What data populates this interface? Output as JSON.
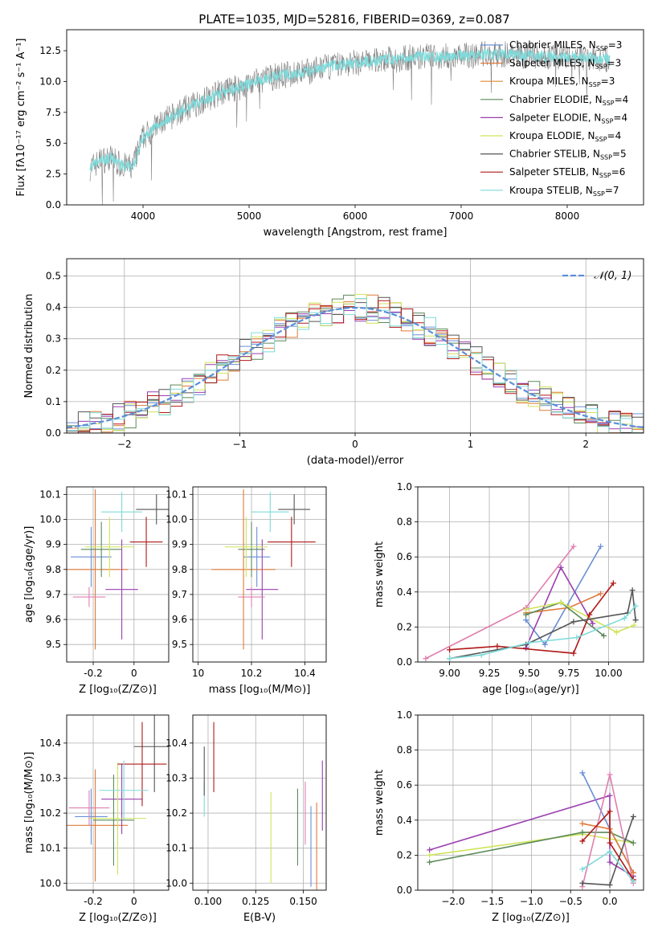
{
  "title": "PLATE=1035, MJD=52816, FIBERID=0369, z=0.087",
  "colors": {
    "Chabrier MILES": "#6a8fd6",
    "Salpeter MILES": "#e07a3a",
    "Kroupa MILES": "#e08a30",
    "Chabrier ELODIE": "#5a8a5a",
    "Salpeter ELODIE": "#9b3fb0",
    "Kroupa ELODIE": "#cfe45a",
    "Chabrier STELIB": "#555555",
    "Salpeter STELIB": "#b01818",
    "Kroupa STELIB": "#7fdada",
    "pink": "#e07fb0",
    "normal": "#5b8fd9",
    "grid": "#b0b0b0"
  },
  "chart_data": [
    {
      "id": "spectrum",
      "type": "line",
      "xlabel": "wavelength [Angstrom, rest frame]",
      "ylabel": "Flux [fλ10⁻¹⁷ erg cm⁻² s⁻¹ A⁻¹]",
      "xlim": [
        3280,
        8720
      ],
      "ylim": [
        0,
        14.2
      ],
      "xticks": [
        4000,
        5000,
        6000,
        7000,
        8000
      ],
      "yticks": [
        0.0,
        2.5,
        5.0,
        7.5,
        10.0,
        12.5
      ],
      "legend": [
        {
          "label": "Chabrier MILES, N",
          "sub": "SSP",
          "suffix": "=3",
          "color": "#6a8fd6"
        },
        {
          "label": "Salpeter MILES, N",
          "sub": "SSP",
          "suffix": "=3",
          "color": "#e07a3a"
        },
        {
          "label": "Kroupa MILES, N",
          "sub": "SSP",
          "suffix": "=3",
          "color": "#e08a30"
        },
        {
          "label": "Chabrier ELODIE, N",
          "sub": "SSP",
          "suffix": "=4",
          "color": "#5a8a5a"
        },
        {
          "label": "Salpeter ELODIE, N",
          "sub": "SSP",
          "suffix": "=4",
          "color": "#9b3fb0"
        },
        {
          "label": "Kroupa ELODIE, N",
          "sub": "SSP",
          "suffix": "=4",
          "color": "#cfe45a"
        },
        {
          "label": "Chabrier STELIB, N",
          "sub": "SSP",
          "suffix": "=5",
          "color": "#555555"
        },
        {
          "label": "Salpeter STELIB, N",
          "sub": "SSP",
          "suffix": "=6",
          "color": "#b01818"
        },
        {
          "label": "Kroupa STELIB, N",
          "sub": "SSP",
          "suffix": "=7",
          "color": "#7fdada"
        }
      ],
      "data_series": {
        "name": "data",
        "color": "#808080",
        "x": [
          3500,
          3600,
          3700,
          3800,
          3900,
          4000,
          4100,
          4200,
          4300,
          4400,
          4500,
          4600,
          4700,
          4800,
          4900,
          5000,
          5100,
          5200,
          5300,
          5400,
          5500,
          5600,
          5700,
          5800,
          5900,
          6000,
          6100,
          6200,
          6300,
          6400,
          6500,
          6600,
          6700,
          6800,
          6900,
          7000,
          7100,
          7200,
          7300,
          7400,
          7500,
          7600,
          7700,
          7800,
          7900,
          8000,
          8100,
          8200,
          8300,
          8400
        ],
        "y": [
          3.0,
          3.6,
          3.8,
          3.2,
          3.0,
          5.5,
          6.2,
          6.8,
          7.3,
          7.8,
          8.2,
          8.6,
          9.0,
          9.3,
          9.5,
          9.8,
          10.1,
          10.3,
          10.5,
          10.6,
          10.7,
          10.9,
          11.1,
          11.3,
          11.4,
          11.5,
          11.6,
          11.7,
          11.8,
          11.8,
          11.9,
          12.0,
          12.0,
          12.0,
          12.1,
          12.1,
          12.1,
          12.2,
          12.2,
          12.2,
          12.2,
          12.1,
          12.1,
          12.0,
          12.0,
          12.0,
          11.9,
          11.9,
          11.8,
          11.8
        ]
      },
      "model_series": {
        "name": "Kroupa STELIB model",
        "color": "#7fdada"
      }
    },
    {
      "id": "residuals",
      "type": "histogram",
      "xlabel": "(data-model)/error",
      "ylabel": "Normed distribution",
      "xlim": [
        -2.5,
        2.5
      ],
      "ylim": [
        0,
        0.555
      ],
      "xticks": [
        -2,
        -1,
        0,
        1,
        2
      ],
      "xtick_labels": [
        "−2",
        "−1",
        "0",
        "1",
        "2"
      ],
      "yticks": [
        0.0,
        0.1,
        0.2,
        0.3,
        0.4,
        0.5
      ],
      "legend": [
        {
          "label": "𝒩(0, 1)",
          "color": "#5b8fd9"
        }
      ],
      "bins_from": -2.5,
      "bin_width": 0.1
    },
    {
      "id": "age-vs-Z",
      "type": "errorbar",
      "xlabel": "Z [log₁₀(Z/Z⊙)]",
      "ylabel": "age  [log₁₀(age/yr)]",
      "xlim": [
        -0.33,
        0.17
      ],
      "ylim": [
        9.43,
        10.13
      ],
      "xticks": [
        -0.2,
        0.0
      ],
      "yticks": [
        9.5,
        9.6,
        9.7,
        9.8,
        9.9,
        10.0,
        10.1
      ],
      "points": [
        {
          "color": "#6a8fd6",
          "x": -0.21,
          "xerr": 0.1,
          "y": 9.85,
          "yerr": 0.12
        },
        {
          "color": "#e07a3a",
          "x": -0.19,
          "xerr": 0.16,
          "y": 9.8,
          "yerr": 0.32
        },
        {
          "color": "#5a8a5a",
          "x": -0.16,
          "xerr": 0.1,
          "y": 9.88,
          "yerr": 0.11
        },
        {
          "color": "#9b3fb0",
          "x": -0.06,
          "xerr": 0.08,
          "y": 9.72,
          "yerr": 0.2
        },
        {
          "color": "#cfe45a",
          "x": -0.12,
          "xerr": 0.12,
          "y": 9.89,
          "yerr": 0.12
        },
        {
          "color": "#555555",
          "x": 0.11,
          "xerr": 0.1,
          "y": 10.04,
          "yerr": 0.06
        },
        {
          "color": "#b01818",
          "x": 0.06,
          "xerr": 0.08,
          "y": 9.91,
          "yerr": 0.1
        },
        {
          "color": "#7fdada",
          "x": -0.06,
          "xerr": 0.1,
          "y": 10.03,
          "yerr": 0.08
        },
        {
          "color": "#e07fb0",
          "x": -0.22,
          "xerr": 0.08,
          "y": 9.69,
          "yerr": 0.04
        }
      ]
    },
    {
      "id": "age-vs-mass",
      "type": "errorbar",
      "xlabel": "mass [log₁₀(M/M⊙)]",
      "ylabel": "",
      "xlim": [
        9.98,
        10.48
      ],
      "ylim": [
        9.43,
        10.13
      ],
      "xticks": [
        10.0,
        10.2,
        10.4
      ],
      "yticks": [
        9.5,
        9.6,
        9.7,
        9.8,
        9.9,
        10.0,
        10.1
      ],
      "points": [
        {
          "color": "#6a8fd6",
          "x": 10.22,
          "xerr": 0.05,
          "y": 9.85,
          "yerr": 0.12
        },
        {
          "color": "#e07a3a",
          "x": 10.17,
          "xerr": 0.12,
          "y": 9.8,
          "yerr": 0.32
        },
        {
          "color": "#5a8a5a",
          "x": 10.2,
          "xerr": 0.05,
          "y": 9.88,
          "yerr": 0.11
        },
        {
          "color": "#9b3fb0",
          "x": 10.24,
          "xerr": 0.06,
          "y": 9.72,
          "yerr": 0.2
        },
        {
          "color": "#cfe45a",
          "x": 10.18,
          "xerr": 0.08,
          "y": 9.89,
          "yerr": 0.12
        },
        {
          "color": "#555555",
          "x": 10.36,
          "xerr": 0.06,
          "y": 10.04,
          "yerr": 0.06
        },
        {
          "color": "#b01818",
          "x": 10.35,
          "xerr": 0.09,
          "y": 9.91,
          "yerr": 0.1
        },
        {
          "color": "#7fdada",
          "x": 10.27,
          "xerr": 0.07,
          "y": 10.03,
          "yerr": 0.08
        },
        {
          "color": "#e07fb0",
          "x": 10.2,
          "xerr": 0.05,
          "y": 9.69,
          "yerr": 0.04
        }
      ]
    },
    {
      "id": "mass-weight-vs-age",
      "type": "line",
      "xlabel": "age  [log₁₀(age/yr)]",
      "ylabel": "mass weight",
      "xlim": [
        8.8,
        10.22
      ],
      "ylim": [
        0.0,
        1.0
      ],
      "xticks": [
        9.0,
        9.25,
        9.5,
        9.75,
        10.0
      ],
      "xtick_labels": [
        "9.00",
        "9.25",
        "9.50",
        "9.75",
        "10.00"
      ],
      "yticks": [
        0.0,
        0.2,
        0.4,
        0.6,
        0.8,
        1.0
      ],
      "series": [
        {
          "color": "#e07fb0",
          "x": [
            8.85,
            9.48,
            9.78
          ],
          "y": [
            0.02,
            0.31,
            0.66
          ]
        },
        {
          "color": "#6a8fd6",
          "x": [
            9.48,
            9.6,
            9.95
          ],
          "y": [
            0.24,
            0.1,
            0.66
          ]
        },
        {
          "color": "#9b3fb0",
          "x": [
            9.48,
            9.7,
            9.9
          ],
          "y": [
            0.08,
            0.54,
            0.22
          ]
        },
        {
          "color": "#e07a3a",
          "x": [
            9.48,
            9.75,
            9.95
          ],
          "y": [
            0.28,
            0.31,
            0.39
          ]
        },
        {
          "color": "#5a8a5a",
          "x": [
            9.48,
            9.7,
            9.97
          ],
          "y": [
            0.27,
            0.34,
            0.15
          ]
        },
        {
          "color": "#cfe45a",
          "x": [
            9.48,
            9.7,
            10.05,
            10.16
          ],
          "y": [
            0.3,
            0.34,
            0.17,
            0.21
          ]
        },
        {
          "color": "#b01818",
          "x": [
            9.0,
            9.3,
            9.78,
            9.88,
            10.03
          ],
          "y": [
            0.07,
            0.09,
            0.05,
            0.27,
            0.45
          ]
        },
        {
          "color": "#555555",
          "x": [
            9.0,
            9.48,
            9.78,
            10.12,
            10.15,
            10.17
          ],
          "y": [
            0.02,
            0.1,
            0.23,
            0.28,
            0.41,
            0.24
          ]
        },
        {
          "color": "#7fdada",
          "x": [
            9.0,
            9.2,
            9.5,
            9.8,
            10.1,
            10.17
          ],
          "y": [
            0.02,
            0.04,
            0.11,
            0.14,
            0.25,
            0.32
          ]
        }
      ]
    },
    {
      "id": "mass-vs-Z",
      "type": "errorbar",
      "xlabel": "Z [log₁₀(Z/Z⊙)]",
      "ylabel": "mass [log₁₀(M/M⊙)]",
      "xlim": [
        -0.33,
        0.17
      ],
      "ylim": [
        9.98,
        10.48
      ],
      "xticks": [
        -0.2,
        0.0
      ],
      "yticks": [
        10.0,
        10.1,
        10.2,
        10.3,
        10.4
      ],
      "points": [
        {
          "color": "#6a8fd6",
          "x": -0.21,
          "xerr": 0.08,
          "y": 10.19,
          "yerr": 0.08
        },
        {
          "color": "#e07a3a",
          "x": -0.19,
          "xerr": 0.16,
          "y": 10.165,
          "yerr": 0.16
        },
        {
          "color": "#5a8a5a",
          "x": -0.1,
          "xerr": 0.1,
          "y": 10.18,
          "yerr": 0.13
        },
        {
          "color": "#9b3fb0",
          "x": -0.06,
          "xerr": 0.1,
          "y": 10.24,
          "yerr": 0.1
        },
        {
          "color": "#cfe45a",
          "x": -0.08,
          "xerr": 0.14,
          "y": 10.185,
          "yerr": 0.16
        },
        {
          "color": "#555555",
          "x": 0.1,
          "xerr": 0.1,
          "y": 10.39,
          "yerr": 0.13
        },
        {
          "color": "#b01818",
          "x": 0.04,
          "xerr": 0.12,
          "y": 10.34,
          "yerr": 0.12
        },
        {
          "color": "#7fdada",
          "x": -0.05,
          "xerr": 0.12,
          "y": 10.265,
          "yerr": 0.085
        },
        {
          "color": "#e07fb0",
          "x": -0.22,
          "xerr": 0.1,
          "y": 10.215,
          "yerr": 0.05
        }
      ]
    },
    {
      "id": "mass-vs-EBV",
      "type": "errorbar",
      "xlabel": "E(B-V)",
      "ylabel": "",
      "xlim": [
        0.092,
        0.162
      ],
      "ylim": [
        9.98,
        10.48
      ],
      "xticks": [
        0.1,
        0.125,
        0.15
      ],
      "xtick_labels": [
        "0.100",
        "0.125",
        "0.150"
      ],
      "yticks": [
        10.0,
        10.1,
        10.2,
        10.3,
        10.4
      ],
      "points": [
        {
          "color": "#7fdada",
          "x": 0.098,
          "y": 10.24,
          "yerr": 0.05
        },
        {
          "color": "#555555",
          "x": 0.098,
          "y": 10.32,
          "yerr": 0.07
        },
        {
          "color": "#b01818",
          "x": 0.103,
          "y": 10.36,
          "yerr": 0.1
        },
        {
          "color": "#cfe45a",
          "x": 0.133,
          "y": 10.13,
          "yerr": 0.13
        },
        {
          "color": "#5a8a5a",
          "x": 0.147,
          "y": 10.16,
          "yerr": 0.11
        },
        {
          "color": "#e07fb0",
          "x": 0.151,
          "y": 10.2,
          "yerr": 0.09
        },
        {
          "color": "#6a8fd6",
          "x": 0.154,
          "y": 10.105,
          "yerr": 0.115
        },
        {
          "color": "#e07a3a",
          "x": 0.157,
          "y": 10.1,
          "yerr": 0.13
        },
        {
          "color": "#9b3fb0",
          "x": 0.16,
          "y": 10.25,
          "yerr": 0.1
        }
      ]
    },
    {
      "id": "mass-weight-vs-Z",
      "type": "line",
      "xlabel": "Z [log₁₀(Z/Z⊙)]",
      "ylabel": "mass weight",
      "xlim": [
        -2.45,
        0.43
      ],
      "ylim": [
        0.0,
        1.0
      ],
      "xticks": [
        -2.0,
        -1.5,
        -1.0,
        -0.5,
        0.0
      ],
      "xtick_labels": [
        "−2.0",
        "−1.5",
        "−1.0",
        "−0.5",
        "0.0"
      ],
      "yticks": [
        0.0,
        0.2,
        0.4,
        0.6,
        0.8,
        1.0
      ],
      "series": [
        {
          "color": "#9b3fb0",
          "x": [
            -2.3,
            0.0,
            0.0,
            0.3
          ],
          "y": [
            0.23,
            0.54,
            0.16,
            0.08
          ]
        },
        {
          "color": "#cfe45a",
          "x": [
            -2.3,
            -0.35,
            0.3
          ],
          "y": [
            0.2,
            0.32,
            0.27
          ]
        },
        {
          "color": "#5a8a5a",
          "x": [
            -2.3,
            -0.35,
            0.0,
            0.3
          ],
          "y": [
            0.16,
            0.33,
            0.33,
            0.27
          ]
        },
        {
          "color": "#6a8fd6",
          "x": [
            -0.35,
            0.0,
            0.3
          ],
          "y": [
            0.67,
            0.35,
            0.1
          ]
        },
        {
          "color": "#e07fb0",
          "x": [
            -0.35,
            0.0,
            0.3
          ],
          "y": [
            0.02,
            0.66,
            0.04
          ]
        },
        {
          "color": "#e07a3a",
          "x": [
            -0.35,
            0.0,
            0.3
          ],
          "y": [
            0.38,
            0.35,
            0.1
          ]
        },
        {
          "color": "#555555",
          "x": [
            -0.35,
            0.0,
            0.3
          ],
          "y": [
            0.04,
            0.03,
            0.42
          ]
        },
        {
          "color": "#b01818",
          "x": [
            -0.35,
            0.0,
            0.0,
            0.3
          ],
          "y": [
            0.28,
            0.45,
            0.27,
            0.06
          ]
        },
        {
          "color": "#7fdada",
          "x": [
            -0.35,
            0.0,
            0.3
          ],
          "y": [
            0.12,
            0.22,
            0.05
          ]
        }
      ]
    }
  ]
}
